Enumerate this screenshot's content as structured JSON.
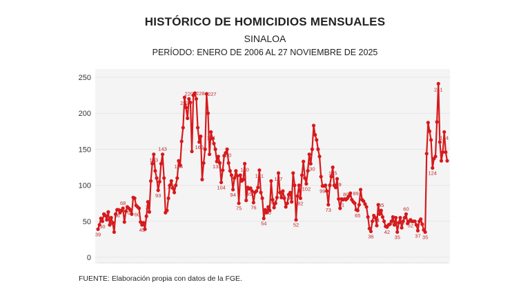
{
  "chart_data": {
    "type": "line",
    "title": "HISTÓRICO DE HOMICIDIOS MENSUALES",
    "subtitle": "SINALOA",
    "period": "PERÍODO: ENERO DE 2006 AL 27 NOVIEMBRE DE 2025",
    "source": "FUENTE: Elaboración propia con datos de la FGE.",
    "xlabel": "",
    "ylabel": "",
    "x_start": "2006-01",
    "x_end": "2025-11",
    "ylim": [
      0,
      260
    ],
    "yticks": [
      0,
      50,
      100,
      150,
      200,
      250
    ],
    "grid": "horizontal",
    "color": "#d7191c",
    "values": [
      39,
      45,
      54,
      50,
      60,
      58,
      52,
      63,
      45,
      55,
      48,
      35,
      60,
      66,
      66,
      62,
      65,
      68,
      49,
      64,
      70,
      68,
      66,
      60,
      83,
      82,
      72,
      70,
      68,
      49,
      45,
      48,
      39,
      57,
      77,
      63,
      106,
      130,
      143,
      120,
      110,
      93,
      105,
      130,
      143,
      110,
      62,
      65,
      82,
      100,
      106,
      96,
      90,
      100,
      110,
      134,
      128,
      161,
      180,
      222,
      208,
      193,
      220,
      215,
      147,
      225,
      228,
      220,
      180,
      160,
      168,
      108,
      131,
      150,
      227,
      200,
      143,
      174,
      165,
      158,
      150,
      133,
      140,
      131,
      104,
      121,
      141,
      145,
      150,
      131,
      120,
      114,
      94,
      110,
      120,
      113,
      75,
      114,
      106,
      108,
      130,
      79,
      97,
      95,
      96,
      92,
      76,
      90,
      92,
      97,
      121,
      90,
      82,
      54,
      66,
      62,
      70,
      65,
      106,
      80,
      69,
      75,
      83,
      117,
      90,
      83,
      92,
      82,
      70,
      75,
      87,
      90,
      77,
      117,
      100,
      52,
      85,
      100,
      82,
      114,
      133,
      110,
      102,
      120,
      143,
      130,
      150,
      183,
      170,
      163,
      150,
      140,
      112,
      99,
      99,
      100,
      92,
      73,
      100,
      112,
      125,
      100,
      97,
      109,
      81,
      68,
      81,
      80,
      81,
      80,
      82,
      85,
      89,
      80,
      77,
      75,
      66,
      65,
      73,
      94,
      80,
      78,
      74,
      70,
      56,
      40,
      36,
      50,
      58,
      55,
      44,
      73,
      60,
      65,
      56,
      50,
      43,
      42,
      45,
      46,
      50,
      56,
      45,
      55,
      35,
      48,
      55,
      41,
      50,
      55,
      60,
      47,
      50,
      52,
      50,
      50,
      50,
      45,
      37,
      50,
      53,
      46,
      38,
      35,
      144,
      187,
      175,
      163,
      124,
      137,
      140,
      188,
      241,
      160,
      134,
      146,
      174,
      146,
      134
    ]
  }
}
